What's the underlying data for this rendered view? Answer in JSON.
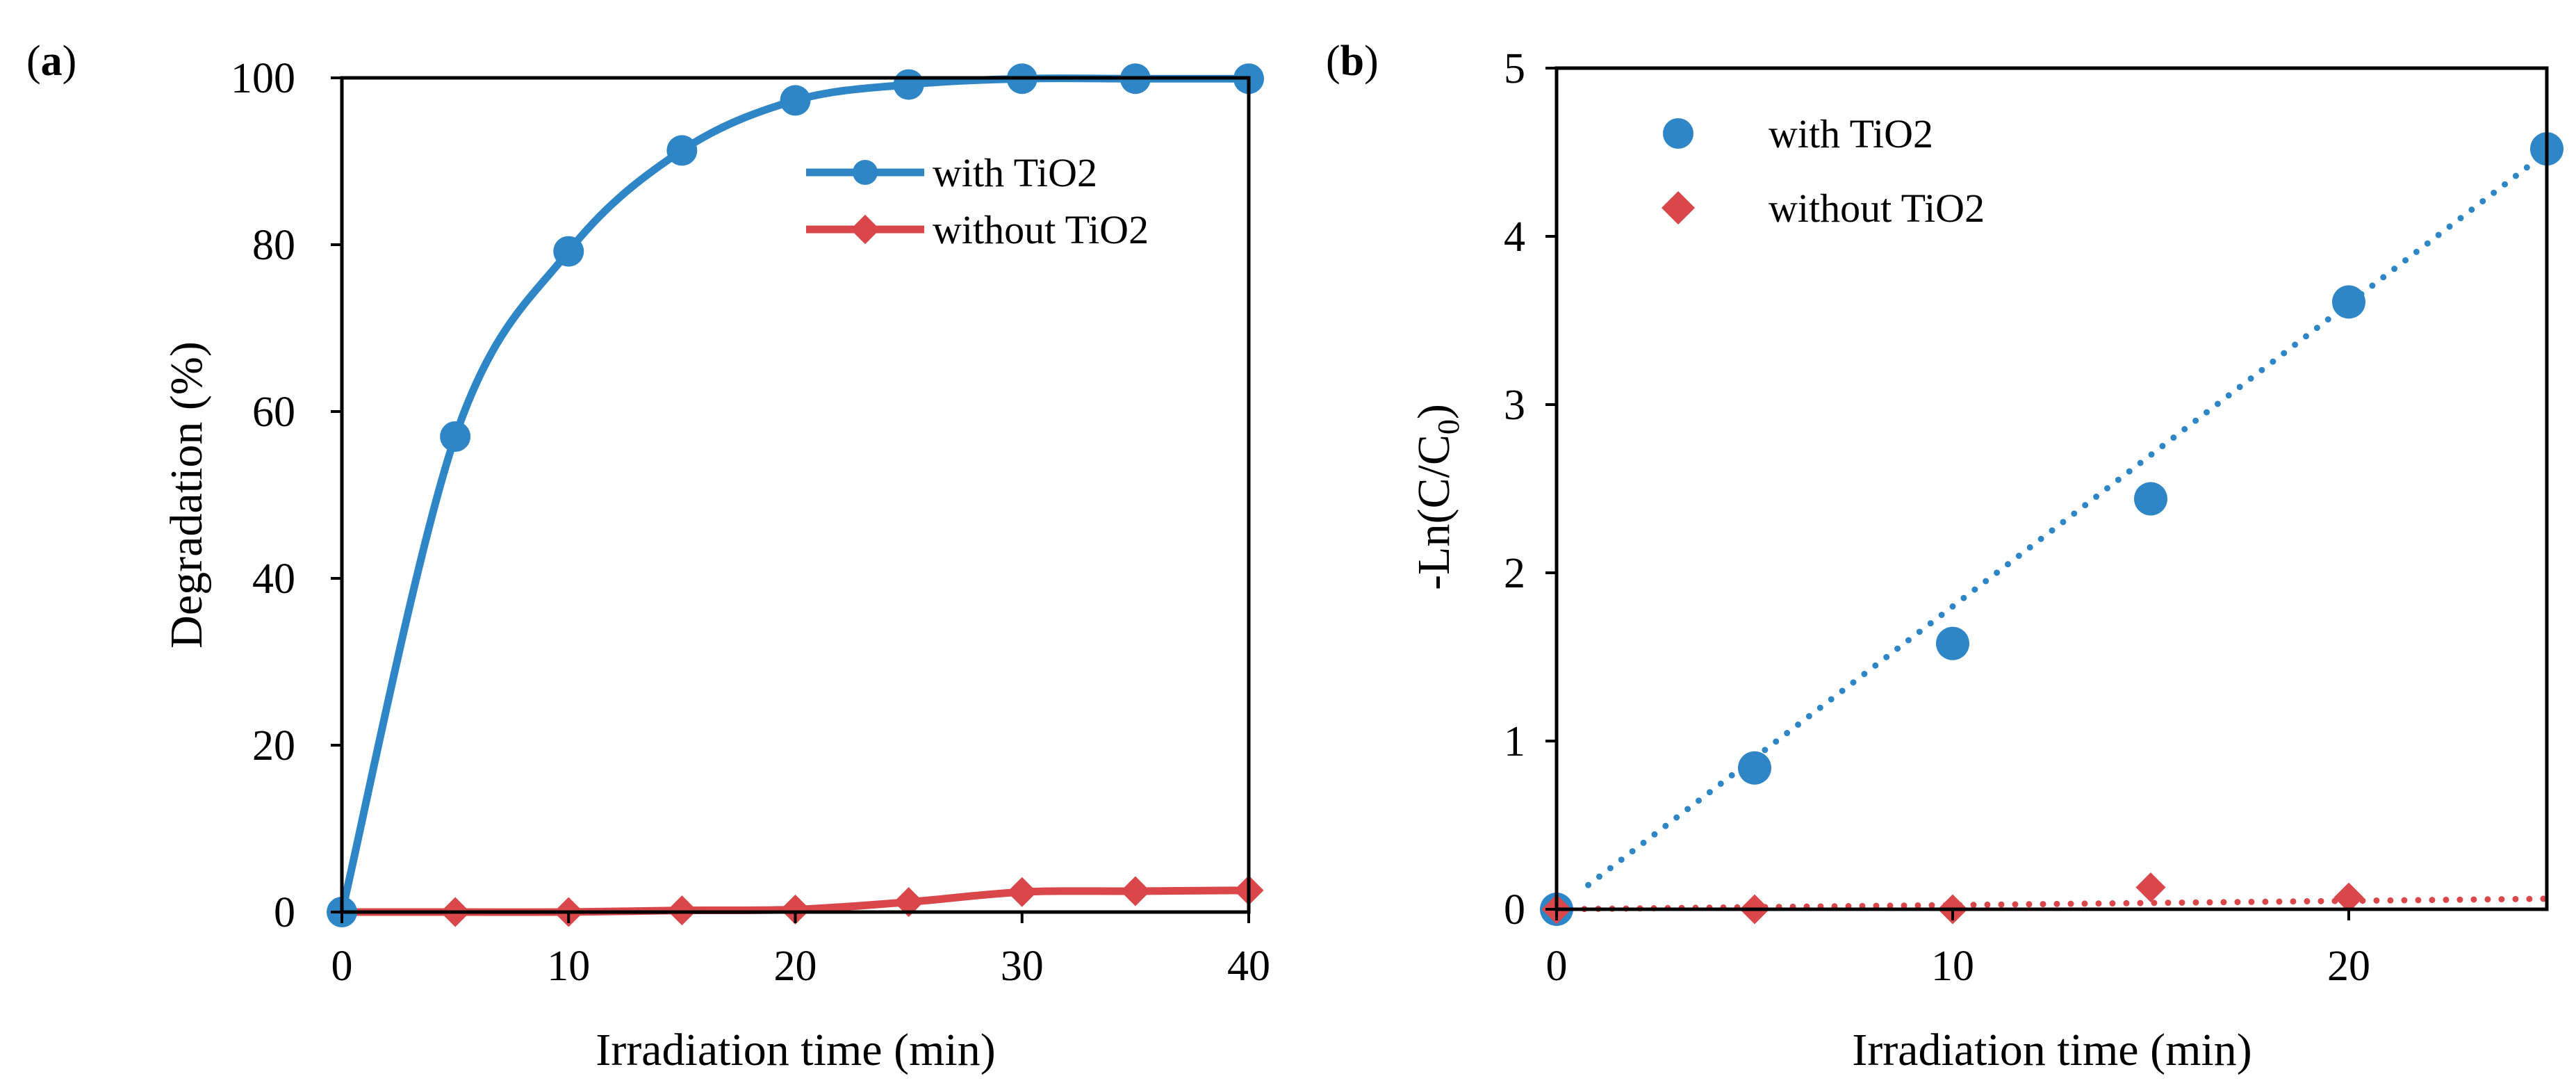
{
  "colors": {
    "blue": "#2e86c6",
    "red": "#d9474b",
    "axis": "#000000"
  },
  "chart_data": [
    {
      "type": "line",
      "panel_label_open": "(",
      "panel_label_letter": "a",
      "panel_label_close": ")",
      "title": "",
      "xlabel": "Irradiation time (min)",
      "ylabel": "Degradation (%)",
      "xlim": [
        0,
        40
      ],
      "ylim": [
        0,
        100
      ],
      "xticks": [
        0,
        10,
        20,
        30,
        40
      ],
      "yticks": [
        0,
        20,
        40,
        60,
        80,
        100
      ],
      "grid": false,
      "legend_position": "top-right",
      "x": [
        0,
        5,
        10,
        15,
        20,
        25,
        30,
        35,
        40
      ],
      "series": [
        {
          "name": "with TiO2",
          "color": "#2e86c6",
          "marker": "circle",
          "smooth": true,
          "values": [
            0,
            57,
            79.2,
            91.3,
            97.3,
            99.2,
            99.9,
            99.9,
            99.9
          ]
        },
        {
          "name": "without TiO2",
          "color": "#d9474b",
          "marker": "diamond",
          "smooth": true,
          "values": [
            0,
            0,
            0,
            0.2,
            0.3,
            1.2,
            2.4,
            2.5,
            2.6
          ]
        }
      ]
    },
    {
      "type": "scatter",
      "panel_label_open": "(",
      "panel_label_letter": "b",
      "panel_label_close": ")",
      "title": "",
      "xlabel": "Irradiation time (min)",
      "ylabel_main": "-Ln(C/C",
      "ylabel_sub": "0",
      "ylabel_end": ")",
      "xlim": [
        0,
        25
      ],
      "ylim": [
        0,
        5
      ],
      "xticks": [
        0,
        10,
        20
      ],
      "yticks": [
        0,
        1,
        2,
        3,
        4,
        5
      ],
      "grid": false,
      "legend_position": "top-left",
      "series": [
        {
          "name": "with TiO2",
          "color": "#2e86c6",
          "marker": "circle",
          "x": [
            0,
            5,
            10,
            15,
            20,
            25
          ],
          "values": [
            0,
            0.84,
            1.58,
            2.44,
            3.61,
            4.52
          ],
          "trendline": {
            "slope": 0.18,
            "intercept": 0,
            "x_start": 0.8,
            "x_end": 25
          }
        },
        {
          "name": "without TiO2",
          "color": "#d9474b",
          "marker": "diamond",
          "x": [
            0,
            5,
            10,
            15,
            20
          ],
          "values": [
            0,
            0,
            0,
            0.13,
            0.07
          ],
          "trendline": {
            "slope": 0.0025,
            "intercept": 0,
            "x_start": 0,
            "x_end": 25
          }
        }
      ]
    }
  ]
}
